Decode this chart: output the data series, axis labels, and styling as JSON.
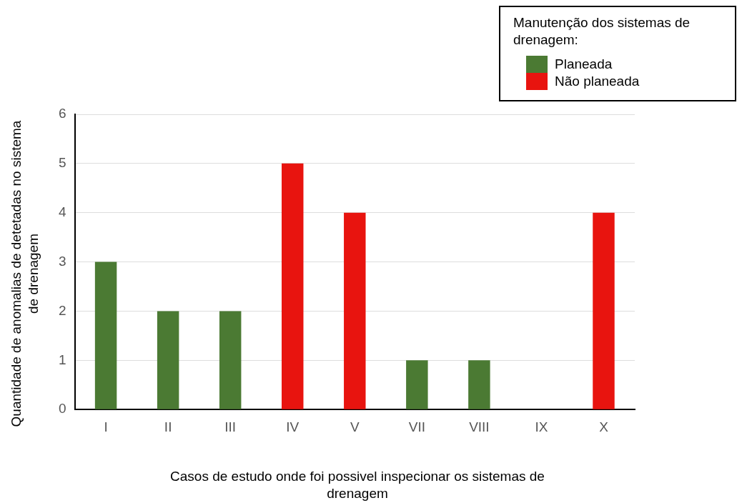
{
  "chart_data": {
    "type": "bar",
    "xlabel": "Casos de estudo onde foi possivel inspecionar os sistemas de drenagem",
    "ylabel": "Quantidade de anomalias de detetadas no sistema de drenagem",
    "legend_title": "Manutenção dos sistemas de drenagem:",
    "categories": [
      "I",
      "II",
      "III",
      "IV",
      "V",
      "VII",
      "VIII",
      "IX",
      "X"
    ],
    "series": [
      {
        "name": "Planeada",
        "color": "#4b7a33",
        "values": [
          3,
          2,
          2,
          null,
          null,
          1,
          1,
          null,
          null
        ]
      },
      {
        "name": "Não planeada",
        "color": "#e8140f",
        "values": [
          null,
          null,
          null,
          5,
          4,
          null,
          null,
          null,
          4
        ]
      }
    ],
    "ylim": [
      0,
      6
    ],
    "yticks": [
      0,
      1,
      2,
      3,
      4,
      5,
      6
    ],
    "grid": "y",
    "legend": "top right"
  }
}
